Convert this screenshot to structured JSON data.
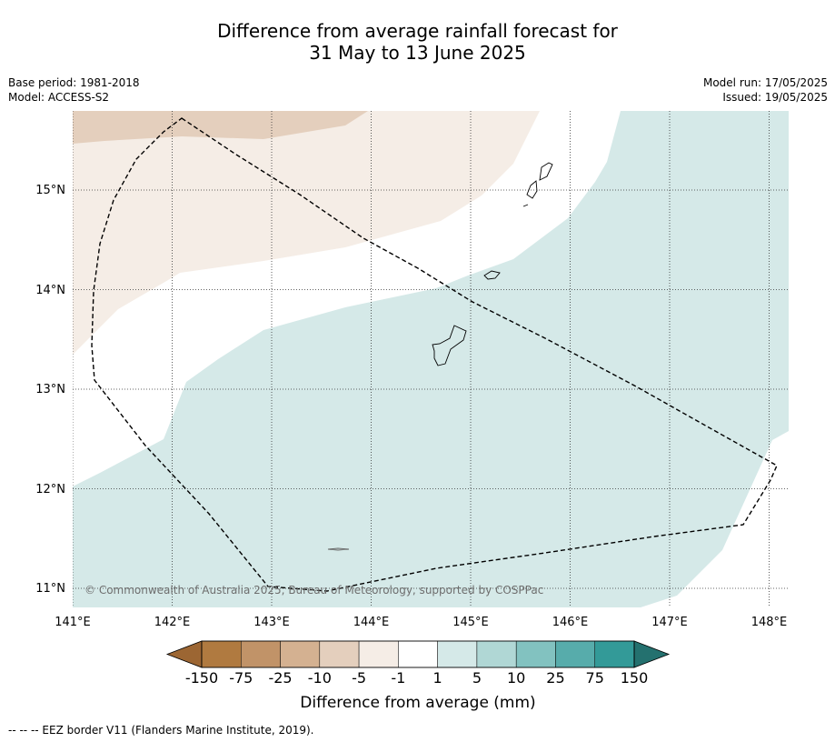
{
  "title_line1": "Difference from average rainfall forecast for",
  "title_line2": "31 May to 13 June 2025",
  "meta_left": {
    "base_period": "Base period: 1981-2018",
    "model": "Model: ACCESS-S2"
  },
  "meta_right": {
    "model_run": "Model run: 17/05/2025",
    "issued": "Issued: 19/05/2025"
  },
  "map": {
    "lon_ticks": [
      "141°E",
      "142°E",
      "143°E",
      "144°E",
      "145°E",
      "146°E",
      "147°E",
      "148°E"
    ],
    "lat_ticks": [
      "15°N",
      "14°N",
      "13°N",
      "12°N",
      "11°N"
    ],
    "copyright": "© Commonwealth of Australia 2025, Bureau of Meteorology, supported by COSPPac",
    "colors": {
      "slight_dry": "#f5ede6",
      "dry": "#e4cfbd",
      "slight_wet": "#d5e9e8"
    }
  },
  "colorbar": {
    "labels": [
      "-150",
      "-75",
      "-25",
      "-10",
      "-5",
      "-1",
      "1",
      "5",
      "10",
      "25",
      "75",
      "150"
    ],
    "colors": [
      "#9c6633",
      "#b07a40",
      "#c19368",
      "#d4b191",
      "#e4cfbd",
      "#f5ede6",
      "#ffffff",
      "#d5e9e8",
      "#b0d7d5",
      "#82c2c0",
      "#57acab",
      "#339a98",
      "#24716f"
    ],
    "title": "Difference from average (mm)"
  },
  "footer": "--  --  -- EEZ border V11 (Flanders Marine Institute, 2019)."
}
